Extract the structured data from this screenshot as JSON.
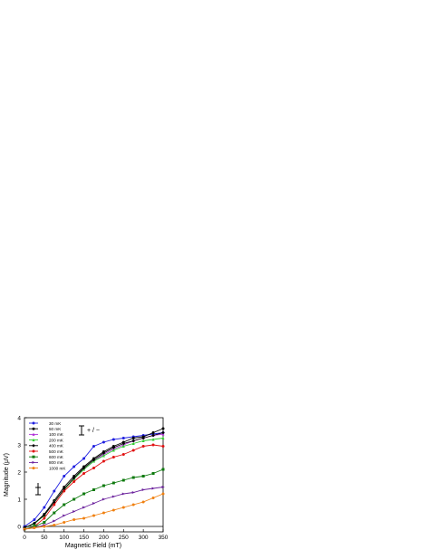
{
  "chart_data": {
    "type": "line",
    "title": "",
    "xlabel": "Magnetic Field (mT)",
    "ylabel": "Magnitude (μV)",
    "xlim": [
      0,
      350
    ],
    "ylim": [
      -0.2,
      4
    ],
    "xticks": [
      "0",
      "50",
      "100",
      "150",
      "200",
      "250",
      "300",
      "350"
    ],
    "yticks": [
      "0",
      "1",
      "2",
      "3",
      "4"
    ],
    "grid": false,
    "legend_position": "top-left",
    "annotations": {
      "errorbar_label": "+ / −",
      "zero_line": 0
    },
    "x": [
      0,
      25,
      50,
      75,
      100,
      125,
      150,
      175,
      200,
      225,
      250,
      275,
      300,
      325,
      350
    ],
    "series": [
      {
        "name": "30 mK",
        "color": "#1f1fe0",
        "marker": "circle",
        "values": [
          0.0,
          0.25,
          0.7,
          1.3,
          1.85,
          2.2,
          2.5,
          2.95,
          3.1,
          3.2,
          3.25,
          3.3,
          3.35,
          3.4,
          3.45
        ]
      },
      {
        "name": "50 mK",
        "color": "#000000",
        "marker": "circle",
        "values": [
          -0.05,
          0.1,
          0.45,
          0.95,
          1.45,
          1.85,
          2.2,
          2.5,
          2.75,
          2.95,
          3.1,
          3.25,
          3.3,
          3.45,
          3.6
        ]
      },
      {
        "name": "100 mK",
        "color": "#b030d8",
        "marker": "triangle",
        "values": [
          -0.05,
          0.1,
          0.4,
          0.9,
          1.35,
          1.75,
          2.1,
          2.4,
          2.65,
          2.85,
          3.0,
          3.15,
          3.25,
          3.35,
          3.4
        ]
      },
      {
        "name": "200 mK",
        "color": "#33cc33",
        "marker": "triangle",
        "values": [
          -0.05,
          0.1,
          0.4,
          0.9,
          1.35,
          1.75,
          2.1,
          2.4,
          2.6,
          2.8,
          2.95,
          3.05,
          3.15,
          3.2,
          3.25
        ]
      },
      {
        "name": "400 mK",
        "color": "#000000",
        "marker": "diamond",
        "values": [
          -0.05,
          0.12,
          0.42,
          0.88,
          1.38,
          1.78,
          2.15,
          2.45,
          2.7,
          2.9,
          3.05,
          3.15,
          3.25,
          3.35,
          3.45
        ]
      },
      {
        "name": "500 mK",
        "color": "#e01010",
        "marker": "circle",
        "values": [
          -0.1,
          0.0,
          0.3,
          0.8,
          1.3,
          1.65,
          1.95,
          2.15,
          2.4,
          2.55,
          2.65,
          2.8,
          2.95,
          3.0,
          2.95
        ]
      },
      {
        "name": "600 mK",
        "color": "#0e7a0e",
        "marker": "square",
        "values": [
          -0.1,
          0.0,
          0.15,
          0.5,
          0.8,
          1.0,
          1.2,
          1.35,
          1.5,
          1.6,
          1.7,
          1.8,
          1.85,
          1.95,
          2.1
        ]
      },
      {
        "name": "800 mK",
        "color": "#6a1f9c",
        "marker": "triangle-right",
        "values": [
          -0.1,
          -0.05,
          0.05,
          0.2,
          0.4,
          0.55,
          0.7,
          0.85,
          1.0,
          1.1,
          1.2,
          1.25,
          1.35,
          1.4,
          1.45
        ]
      },
      {
        "name": "1000 mK",
        "color": "#f08010",
        "marker": "circle",
        "values": [
          -0.1,
          -0.05,
          0.0,
          0.05,
          0.15,
          0.25,
          0.3,
          0.4,
          0.5,
          0.6,
          0.7,
          0.8,
          0.9,
          1.05,
          1.2
        ]
      }
    ]
  }
}
